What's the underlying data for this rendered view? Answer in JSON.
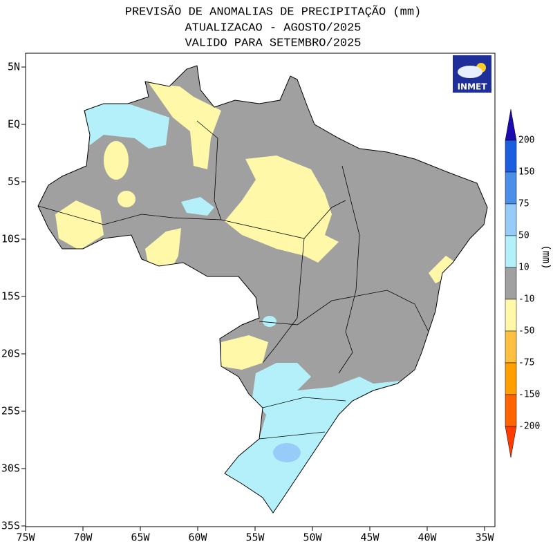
{
  "title": [
    "PREVISÃO DE ANOMALIAS DE PRECIPITAÇÃO (mm)",
    "ATUALIZACAO - AGOSTO/2025",
    "VALIDO PARA SETEMBRO/2025"
  ],
  "map": {
    "lon_labels": [
      "75W",
      "70W",
      "65W",
      "60W",
      "55W",
      "50W",
      "45W",
      "40W",
      "35W"
    ],
    "lat_labels": [
      "5N",
      "EQ",
      "5S",
      "10S",
      "15S",
      "20S",
      "25S",
      "30S",
      "35S"
    ]
  },
  "logo": "INMET",
  "colorbar": {
    "unit": "(mm)",
    "levels": [
      "200",
      "150",
      "75",
      "50",
      "10",
      "-10",
      "-50",
      "-75",
      "-150",
      "-200"
    ],
    "colors": [
      "#1a0ab0",
      "#1c5ee0",
      "#4a90e8",
      "#98ccf8",
      "#b4f0fa",
      "#a0a0a0",
      "#fff8a8",
      "#ffc040",
      "#ffa000",
      "#ff6400",
      "#ff3c00"
    ]
  }
}
